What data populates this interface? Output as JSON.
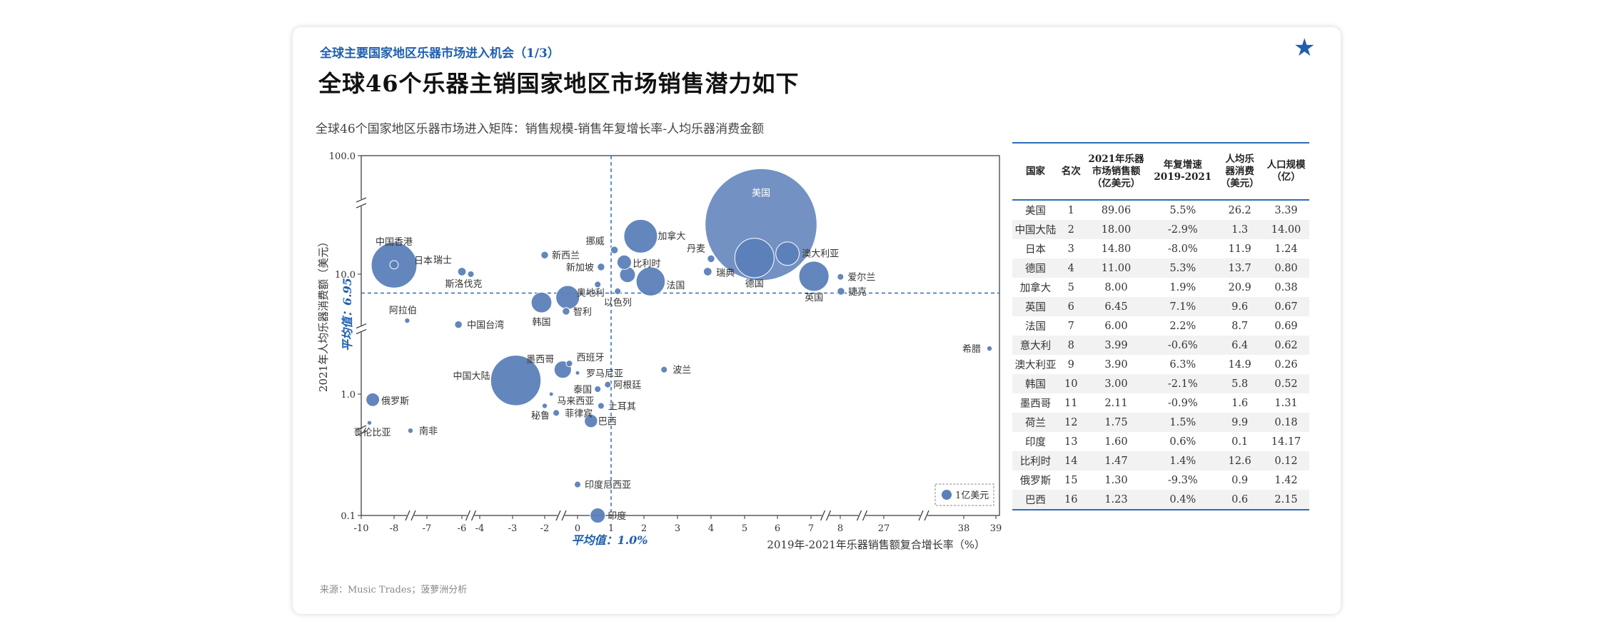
{
  "header": {
    "section_label": "全球主要国家地区乐器市场进入机会（1/3）",
    "title": "全球46个乐器主销国家地区市场销售潜力如下",
    "chart_caption": "全球46个国家地区乐器市场进入矩阵：销售规模-销售年复增长率-人均乐器消费金额",
    "star_icon": "star-icon"
  },
  "source": "来源：Music Trades；菠萝洲分析",
  "colors": {
    "accent": "#1f5fae",
    "bubble": "#5b7fb8",
    "refline": "#2f6db5"
  },
  "chart_data": {
    "type": "scatter",
    "bubble": true,
    "xlabel": "2019年-2021年乐器销售额复合增长率（%）",
    "ylabel": "2021年人均乐器消费额（美元）",
    "y_scale": "log",
    "ylim": [
      0.1,
      100.0
    ],
    "x_ticks": [
      "-10",
      "-8",
      "-7",
      "-6",
      "-4",
      "-3",
      "-2",
      "0",
      "1",
      "2",
      "3",
      "4",
      "5",
      "6",
      "7",
      "8",
      "27",
      "38",
      "39"
    ],
    "y_ticks": [
      "0.1",
      "1.0",
      "10.0",
      "100.0"
    ],
    "x_axis_breaks": [
      "-8~-7",
      "-6~-4",
      "-2~0",
      "7~8",
      "8~27",
      "27~38"
    ],
    "y_axis_breaks": [
      0.5,
      3.5,
      40
    ],
    "ref_x": {
      "value": 1.0,
      "label": "平均值：1.0%"
    },
    "ref_y": {
      "value": 6.95,
      "label": "平均值：6.95"
    },
    "legend": {
      "label": "1亿美元",
      "position": "bottom-right"
    },
    "points": [
      {
        "name": "美国",
        "x": 5.5,
        "y": 26.2,
        "size": 89.06,
        "show": true
      },
      {
        "name": "中国大陆",
        "x": -2.9,
        "y": 1.3,
        "size": 18.0,
        "show": true
      },
      {
        "name": "日本",
        "x": -8.0,
        "y": 11.9,
        "size": 14.8,
        "show": true
      },
      {
        "name": "德国",
        "x": 5.3,
        "y": 13.7,
        "size": 11.0,
        "show": true
      },
      {
        "name": "加拿大",
        "x": 1.9,
        "y": 20.9,
        "size": 8.0,
        "show": true
      },
      {
        "name": "英国",
        "x": 7.1,
        "y": 9.6,
        "size": 6.45,
        "show": true
      },
      {
        "name": "法国",
        "x": 2.2,
        "y": 8.7,
        "size": 6.0,
        "show": true
      },
      {
        "name": "意大利",
        "x": -0.6,
        "y": 6.4,
        "size": 3.99,
        "show": false
      },
      {
        "name": "澳大利亚",
        "x": 6.3,
        "y": 14.9,
        "size": 3.9,
        "show": true
      },
      {
        "name": "韩国",
        "x": -2.1,
        "y": 5.8,
        "size": 3.0,
        "show": true
      },
      {
        "name": "墨西哥",
        "x": -0.9,
        "y": 1.6,
        "size": 2.11,
        "show": true
      },
      {
        "name": "荷兰",
        "x": 1.5,
        "y": 9.9,
        "size": 1.75,
        "show": false
      },
      {
        "name": "印度",
        "x": 0.6,
        "y": 0.1,
        "size": 1.6,
        "show": true
      },
      {
        "name": "比利时",
        "x": 1.4,
        "y": 12.6,
        "size": 1.47,
        "show": true
      },
      {
        "name": "俄罗斯",
        "x": -9.3,
        "y": 0.9,
        "size": 1.3,
        "show": true
      },
      {
        "name": "巴西",
        "x": 0.4,
        "y": 0.6,
        "size": 1.23,
        "show": true
      },
      {
        "name": "中国香港",
        "x": -8.0,
        "y": 12.0,
        "size": 0.5,
        "show": true
      },
      {
        "name": "瑞士",
        "x": -6.0,
        "y": 10.5,
        "size": 0.5,
        "show": true
      },
      {
        "name": "斯洛伐克",
        "x": -5.0,
        "y": 10.0,
        "size": 0.3,
        "show": true
      },
      {
        "name": "新西兰",
        "x": -2.0,
        "y": 14.5,
        "size": 0.4,
        "show": true
      },
      {
        "name": "挪威",
        "x": 1.1,
        "y": 16.0,
        "size": 0.4,
        "show": true
      },
      {
        "name": "新加坡",
        "x": 0.7,
        "y": 11.5,
        "size": 0.4,
        "show": true
      },
      {
        "name": "丹麦",
        "x": 4.0,
        "y": 13.5,
        "size": 0.4,
        "show": true
      },
      {
        "name": "瑞典",
        "x": 3.9,
        "y": 10.5,
        "size": 0.5,
        "show": true
      },
      {
        "name": "奥地利",
        "x": 0.6,
        "y": 8.2,
        "size": 0.3,
        "show": true
      },
      {
        "name": "以色列",
        "x": 1.2,
        "y": 7.2,
        "size": 0.3,
        "show": true
      },
      {
        "name": "爱尔兰",
        "x": 8.1,
        "y": 9.5,
        "size": 0.3,
        "show": true
      },
      {
        "name": "捷克",
        "x": 8.3,
        "y": 7.2,
        "size": 0.4,
        "show": true
      },
      {
        "name": "智利",
        "x": -0.7,
        "y": 4.9,
        "size": 0.4,
        "show": true
      },
      {
        "name": "阿拉伯",
        "x": -7.6,
        "y": 4.1,
        "size": 0.2,
        "show": true
      },
      {
        "name": "中国台湾",
        "x": -6.1,
        "y": 3.8,
        "size": 0.4,
        "show": true
      },
      {
        "name": "西班牙",
        "x": -0.5,
        "y": 1.8,
        "size": 0.3,
        "show": true
      },
      {
        "name": "罗马尼亚",
        "x": 0.0,
        "y": 1.5,
        "size": 0.1,
        "show": true
      },
      {
        "name": "波兰",
        "x": 2.6,
        "y": 1.6,
        "size": 0.3,
        "show": true
      },
      {
        "name": "阿根廷",
        "x": 0.9,
        "y": 1.2,
        "size": 0.3,
        "show": true
      },
      {
        "name": "泰国",
        "x": 0.6,
        "y": 1.1,
        "size": 0.3,
        "show": true
      },
      {
        "name": "马来西亚",
        "x": -1.6,
        "y": 1.0,
        "size": 0.1,
        "show": true
      },
      {
        "name": "土耳其",
        "x": 0.7,
        "y": 0.8,
        "size": 0.3,
        "show": true
      },
      {
        "name": "秘鲁",
        "x": -2.0,
        "y": 0.8,
        "size": 0.2,
        "show": true
      },
      {
        "name": "菲律宾",
        "x": -1.3,
        "y": 0.7,
        "size": 0.3,
        "show": true
      },
      {
        "name": "哥伦比亚",
        "x": -9.5,
        "y": 0.58,
        "size": 0.15,
        "show": true
      },
      {
        "name": "南非",
        "x": -7.5,
        "y": 0.5,
        "size": 0.2,
        "show": true
      },
      {
        "name": "印度尼西亚",
        "x": 0.0,
        "y": 0.18,
        "size": 0.3,
        "show": true
      },
      {
        "name": "希腊",
        "x": 38.8,
        "y": 2.4,
        "size": 0.2,
        "show": true
      }
    ]
  },
  "table": {
    "headers": [
      "国家",
      "名次",
      "2021年乐器\n市场销售额\n（亿美元）",
      "年复增速\n2019-2021",
      "人均乐\n器消费\n（美元）",
      "人口规模\n（亿）"
    ],
    "rows": [
      [
        "美国",
        "1",
        "89.06",
        "5.5%",
        "26.2",
        "3.39"
      ],
      [
        "中国大陆",
        "2",
        "18.00",
        "-2.9%",
        "1.3",
        "14.00"
      ],
      [
        "日本",
        "3",
        "14.80",
        "-8.0%",
        "11.9",
        "1.24"
      ],
      [
        "德国",
        "4",
        "11.00",
        "5.3%",
        "13.7",
        "0.80"
      ],
      [
        "加拿大",
        "5",
        "8.00",
        "1.9%",
        "20.9",
        "0.38"
      ],
      [
        "英国",
        "6",
        "6.45",
        "7.1%",
        "9.6",
        "0.67"
      ],
      [
        "法国",
        "7",
        "6.00",
        "2.2%",
        "8.7",
        "0.69"
      ],
      [
        "意大利",
        "8",
        "3.99",
        "-0.6%",
        "6.4",
        "0.62"
      ],
      [
        "澳大利亚",
        "9",
        "3.90",
        "6.3%",
        "14.9",
        "0.26"
      ],
      [
        "韩国",
        "10",
        "3.00",
        "-2.1%",
        "5.8",
        "0.52"
      ],
      [
        "墨西哥",
        "11",
        "2.11",
        "-0.9%",
        "1.6",
        "1.31"
      ],
      [
        "荷兰",
        "12",
        "1.75",
        "1.5%",
        "9.9",
        "0.18"
      ],
      [
        "印度",
        "13",
        "1.60",
        "0.6%",
        "0.1",
        "14.17"
      ],
      [
        "比利时",
        "14",
        "1.47",
        "1.4%",
        "12.6",
        "0.12"
      ],
      [
        "俄罗斯",
        "15",
        "1.30",
        "-9.3%",
        "0.9",
        "1.42"
      ],
      [
        "巴西",
        "16",
        "1.23",
        "0.4%",
        "0.6",
        "2.15"
      ]
    ]
  }
}
